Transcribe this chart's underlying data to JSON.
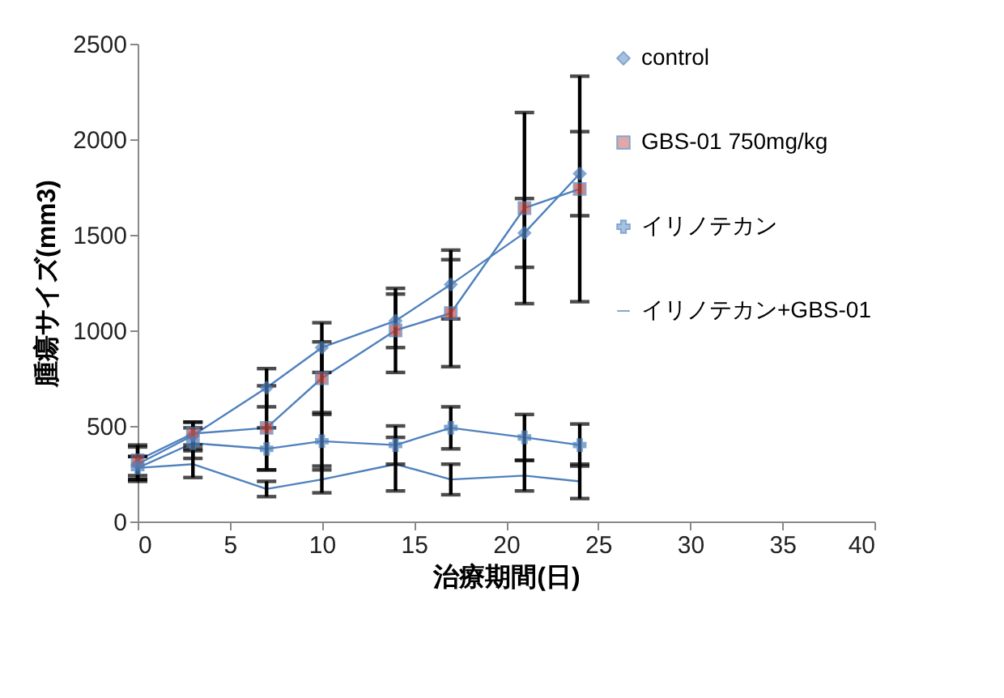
{
  "chart_data": {
    "type": "line",
    "xlabel": "治療期間(日)",
    "ylabel": "腫瘍サイズ(mm3)",
    "x": [
      0,
      3,
      7,
      10,
      14,
      17,
      21,
      24
    ],
    "series": [
      {
        "name": "control",
        "color": "#4f81bd",
        "marker": "diamond",
        "values": [
          300,
          450,
          700,
          910,
          1050,
          1240,
          1510,
          1820
        ],
        "errors": [
          90,
          70,
          100,
          130,
          140,
          180,
          180,
          220
        ]
      },
      {
        "name": "GBS-01 750mg/kg",
        "color": "#c0504d",
        "marker": "square",
        "values": [
          320,
          460,
          490,
          750,
          1000,
          1090,
          1640,
          1740
        ],
        "errors": [
          80,
          60,
          220,
          190,
          220,
          280,
          500,
          590
        ]
      },
      {
        "name": "イリノテカン",
        "color": "#4f81bd",
        "marker": "cross",
        "values": [
          280,
          410,
          380,
          420,
          400,
          490,
          440,
          400
        ],
        "errors": [
          60,
          80,
          110,
          150,
          100,
          110,
          120,
          110
        ]
      },
      {
        "name": "イリノテカン+GBS-01",
        "color": "#4f81bd",
        "marker": "none",
        "values": [
          280,
          300,
          170,
          220,
          300,
          220,
          240,
          210
        ],
        "errors": [
          60,
          70,
          40,
          70,
          140,
          80,
          80,
          90
        ]
      }
    ],
    "xlim": [
      0,
      40
    ],
    "xticks": [
      0,
      5,
      10,
      15,
      20,
      25,
      30,
      35,
      40
    ],
    "ylim": [
      0,
      2500
    ],
    "yticks": [
      0,
      500,
      1000,
      1500,
      2000,
      2500
    ],
    "grid": false,
    "legend": "top right",
    "line_style": "solid"
  }
}
